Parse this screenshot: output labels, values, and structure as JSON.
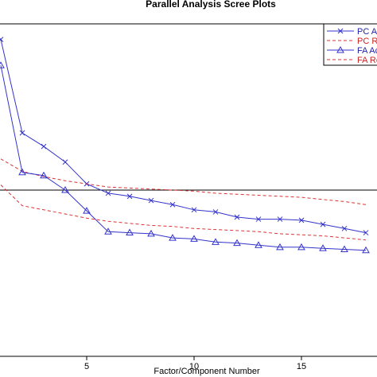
{
  "chart_data": {
    "type": "line",
    "title": "Parallel Analysis Scree Plots",
    "xlabel": "Factor/Component Number",
    "ylabel": "",
    "x_ticks": [
      5,
      10,
      15
    ],
    "xlim": [
      0,
      18
    ],
    "ylim": [
      -0.6,
      2.6
    ],
    "reference_line": 1,
    "grid": false,
    "legend": "top-right",
    "series": [
      {
        "name": "PC  Actual Data",
        "style": "solid",
        "marker": "x",
        "color": "#3333cc",
        "x": [
          1,
          2,
          3,
          4,
          5,
          6,
          7,
          8,
          9,
          10,
          11,
          12,
          13,
          14,
          15,
          16,
          17,
          18
        ],
        "values": [
          2.45,
          1.55,
          1.42,
          1.27,
          1.06,
          0.97,
          0.94,
          0.9,
          0.86,
          0.81,
          0.79,
          0.74,
          0.72,
          0.72,
          0.71,
          0.67,
          0.63,
          0.59
        ]
      },
      {
        "name": "PC  Resampled Data",
        "style": "dashed",
        "marker": "",
        "color": "#dd3333",
        "x": [
          1,
          2,
          3,
          4,
          5,
          6,
          7,
          8,
          9,
          10,
          11,
          12,
          13,
          14,
          15,
          16,
          17,
          18
        ],
        "values": [
          1.3,
          1.18,
          1.13,
          1.09,
          1.06,
          1.03,
          1.02,
          1.01,
          1.0,
          0.99,
          0.97,
          0.96,
          0.95,
          0.94,
          0.93,
          0.91,
          0.89,
          0.86
        ]
      },
      {
        "name": "FA  Actual Data",
        "style": "solid",
        "marker": "triangle",
        "color": "#3333cc",
        "x": [
          1,
          2,
          3,
          4,
          5,
          6,
          7,
          8,
          9,
          10,
          11,
          12,
          13,
          14,
          15,
          16,
          17,
          18
        ],
        "values": [
          2.2,
          1.17,
          1.14,
          1.0,
          0.8,
          0.6,
          0.59,
          0.58,
          0.54,
          0.53,
          0.5,
          0.49,
          0.47,
          0.45,
          0.45,
          0.44,
          0.43,
          0.42
        ]
      },
      {
        "name": "FA  Resampled Data",
        "style": "dashed",
        "marker": "",
        "color": "#dd3333",
        "x": [
          1,
          2,
          3,
          4,
          5,
          6,
          7,
          8,
          9,
          10,
          11,
          12,
          13,
          14,
          15,
          16,
          17,
          18
        ],
        "values": [
          1.05,
          0.85,
          0.81,
          0.77,
          0.73,
          0.7,
          0.68,
          0.66,
          0.65,
          0.63,
          0.62,
          0.61,
          0.6,
          0.58,
          0.57,
          0.56,
          0.54,
          0.52
        ]
      }
    ]
  }
}
